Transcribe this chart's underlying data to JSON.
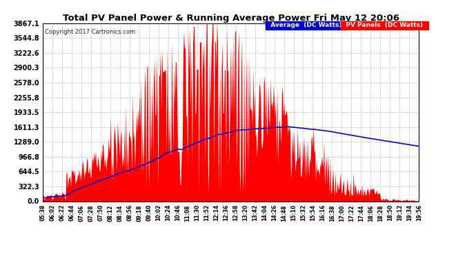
{
  "title": "Total PV Panel Power & Running Average Power Fri May 12 20:06",
  "copyright": "Copyright 2017 Cartronics.com",
  "legend_avg": "Average  (DC Watts)",
  "legend_pv": "PV Panels  (DC Watts)",
  "yticks": [
    0.0,
    322.3,
    644.5,
    966.8,
    1289.0,
    1611.3,
    1933.5,
    2255.8,
    2578.0,
    2900.3,
    3222.6,
    3544.8,
    3867.1
  ],
  "ymax": 3867.1,
  "bg_color": "#ffffff",
  "plot_bg_color": "#ffffff",
  "grid_color": "#aaaaaa",
  "pv_color": "#ff0000",
  "avg_color": "#0000cc",
  "title_color": "#000000",
  "legend_avg_bg": "#0000cc",
  "legend_pv_bg": "#ff0000",
  "xtick_labels": [
    "05:38",
    "06:02",
    "06:22",
    "06:44",
    "07:06",
    "07:28",
    "07:50",
    "08:12",
    "08:34",
    "08:56",
    "09:18",
    "09:40",
    "10:02",
    "10:24",
    "10:46",
    "11:08",
    "11:30",
    "11:52",
    "12:14",
    "12:36",
    "12:58",
    "13:20",
    "13:42",
    "14:04",
    "14:26",
    "14:48",
    "15:10",
    "15:32",
    "15:54",
    "16:16",
    "16:38",
    "17:00",
    "17:22",
    "17:44",
    "18:06",
    "18:28",
    "18:50",
    "19:12",
    "19:34",
    "19:56"
  ],
  "num_points": 500,
  "seed": 12345
}
